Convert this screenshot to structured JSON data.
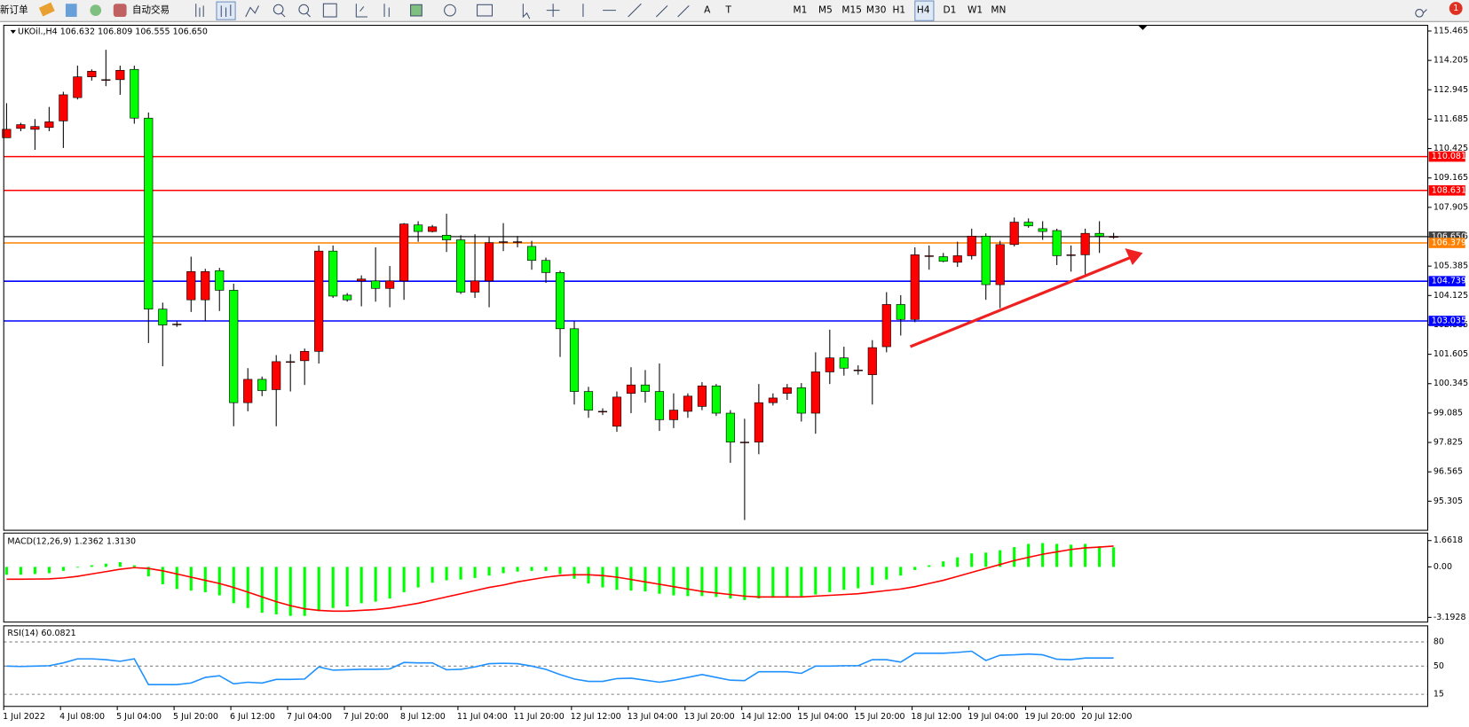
{
  "toolbar": {
    "new_order": "新订单",
    "auto_trading": "自动交易",
    "timeframes": [
      "M1",
      "M5",
      "M15",
      "M30",
      "H1",
      "H4",
      "D1",
      "W1",
      "MN"
    ],
    "active_timeframe": "H4",
    "notifications": 1
  },
  "chart_data": [
    {
      "type": "candlestick",
      "title": "UKOil.,H4 106.632 106.809 106.555 106.650",
      "categories": [
        "1 Jul 2022",
        null,
        null,
        null,
        "4 Jul 08:00",
        null,
        null,
        null,
        "5 Jul 04:00",
        null,
        null,
        null,
        "5 Jul 20:00",
        null,
        null,
        null,
        "6 Jul 12:00",
        null,
        null,
        null,
        "7 Jul 04:00",
        null,
        null,
        null,
        "7 Jul 20:00",
        null,
        null,
        null,
        "8 Jul 12:00",
        null,
        null,
        null,
        "11 Jul 04:00",
        null,
        null,
        null,
        "11 Jul 20:00",
        null,
        null,
        null,
        "12 Jul 12:00",
        null,
        null,
        null,
        "13 Jul 04:00",
        null,
        null,
        null,
        "13 Jul 20:00",
        null,
        null,
        null,
        "14 Jul 12:00",
        null,
        null,
        null,
        "15 Jul 04:00",
        null,
        null,
        null,
        "15 Jul 20:00",
        null,
        null,
        null,
        "18 Jul 12:00",
        null,
        null,
        null,
        "19 Jul 04:00",
        null,
        null,
        null,
        "19 Jul 20:00",
        null,
        null,
        null,
        "20 Jul 12:00",
        null,
        null
      ],
      "ohlc": [
        [
          110.89,
          112.37,
          110.89,
          111.25
        ],
        [
          111.29,
          111.53,
          111.17,
          111.45
        ],
        [
          111.25,
          111.69,
          110.37,
          111.37
        ],
        [
          111.33,
          112.21,
          111.17,
          111.57
        ],
        [
          111.61,
          112.86,
          110.45,
          112.73
        ],
        [
          112.61,
          113.98,
          112.53,
          113.5
        ],
        [
          113.5,
          113.82,
          113.34,
          113.74
        ],
        [
          113.38,
          114.66,
          113.1,
          113.38
        ],
        [
          113.38,
          113.98,
          112.73,
          113.78
        ],
        [
          113.82,
          113.98,
          111.49,
          111.73
        ],
        [
          111.73,
          111.97,
          102.09,
          103.54
        ],
        [
          103.54,
          103.82,
          101.09,
          102.86
        ],
        [
          102.9,
          103.02,
          102.78,
          102.9
        ],
        [
          103.94,
          105.79,
          103.42,
          105.15
        ],
        [
          103.94,
          105.27,
          103.02,
          105.15
        ],
        [
          105.19,
          105.31,
          103.46,
          104.35
        ],
        [
          104.35,
          104.63,
          98.52,
          99.53
        ],
        [
          99.53,
          101.01,
          99.16,
          100.53
        ],
        [
          100.53,
          100.65,
          99.81,
          100.05
        ],
        [
          100.09,
          101.57,
          98.52,
          101.29
        ],
        [
          101.29,
          101.61,
          100.01,
          101.29
        ],
        [
          101.33,
          101.85,
          100.29,
          101.73
        ],
        [
          101.73,
          106.27,
          101.21,
          106.03
        ],
        [
          106.03,
          106.27,
          104.02,
          104.1
        ],
        [
          104.14,
          104.23,
          103.86,
          103.94
        ],
        [
          104.75,
          104.99,
          103.66,
          104.83
        ],
        [
          104.75,
          106.19,
          103.86,
          104.43
        ],
        [
          104.43,
          105.39,
          103.62,
          104.75
        ],
        [
          104.75,
          107.23,
          103.94,
          107.19
        ],
        [
          107.15,
          107.31,
          106.43,
          106.87
        ],
        [
          106.87,
          107.15,
          106.83,
          107.07
        ],
        [
          106.71,
          107.63,
          105.99,
          106.51
        ],
        [
          106.51,
          106.71,
          104.19,
          104.27
        ],
        [
          104.27,
          106.75,
          104.02,
          104.75
        ],
        [
          104.75,
          106.63,
          103.62,
          106.39
        ],
        [
          106.43,
          107.23,
          106.03,
          106.43
        ],
        [
          106.43,
          106.67,
          106.19,
          106.43
        ],
        [
          106.23,
          106.47,
          105.23,
          105.63
        ],
        [
          105.63,
          105.75,
          104.67,
          105.11
        ],
        [
          105.11,
          105.19,
          101.49,
          102.7
        ],
        [
          102.7,
          103.02,
          99.45,
          100.01
        ],
        [
          100.01,
          100.21,
          98.88,
          99.21
        ],
        [
          99.16,
          99.29,
          99.0,
          99.16
        ],
        [
          98.52,
          100.01,
          98.28,
          99.77
        ],
        [
          99.93,
          101.05,
          99.08,
          100.29
        ],
        [
          100.29,
          100.93,
          99.53,
          100.01
        ],
        [
          100.01,
          101.21,
          98.32,
          98.8
        ],
        [
          98.8,
          99.93,
          98.44,
          99.21
        ],
        [
          99.16,
          99.93,
          98.88,
          99.81
        ],
        [
          99.37,
          100.41,
          99.21,
          100.25
        ],
        [
          100.25,
          100.33,
          98.96,
          99.08
        ],
        [
          99.08,
          99.21,
          96.95,
          97.84
        ],
        [
          97.84,
          98.84,
          94.5,
          97.84
        ],
        [
          97.84,
          100.33,
          97.32,
          99.53
        ],
        [
          99.53,
          99.93,
          99.41,
          99.73
        ],
        [
          99.93,
          100.33,
          99.65,
          100.17
        ],
        [
          100.17,
          100.37,
          98.72,
          99.08
        ],
        [
          99.08,
          101.69,
          98.2,
          100.85
        ],
        [
          100.85,
          102.66,
          100.33,
          101.45
        ],
        [
          101.45,
          101.93,
          100.69,
          101.01
        ],
        [
          100.93,
          101.13,
          100.73,
          100.93
        ],
        [
          100.73,
          102.21,
          99.45,
          101.89
        ],
        [
          101.93,
          104.27,
          101.69,
          103.74
        ],
        [
          103.74,
          104.14,
          102.41,
          103.1
        ],
        [
          103.1,
          106.19,
          102.98,
          105.87
        ],
        [
          105.83,
          106.27,
          105.23,
          105.83
        ],
        [
          105.79,
          105.95,
          105.55,
          105.59
        ],
        [
          105.55,
          106.43,
          105.35,
          105.83
        ],
        [
          105.83,
          106.99,
          105.67,
          106.67
        ],
        [
          106.67,
          106.79,
          103.94,
          104.59
        ],
        [
          104.59,
          106.47,
          103.58,
          106.31
        ],
        [
          106.31,
          107.47,
          106.23,
          107.27
        ],
        [
          107.27,
          107.43,
          107.03,
          107.11
        ],
        [
          106.99,
          107.31,
          106.51,
          106.87
        ],
        [
          106.91,
          106.99,
          105.43,
          105.83
        ],
        [
          105.87,
          106.27,
          105.15,
          105.87
        ],
        [
          105.87,
          106.99,
          105.03,
          106.79
        ],
        [
          106.79,
          107.31,
          105.95,
          106.67
        ],
        [
          106.632,
          106.809,
          106.555,
          106.65
        ]
      ],
      "up_color": "#ff0000",
      "down_color": "#00ff00",
      "ylim": [
        94.06,
        115.71
      ],
      "yticks": [
        115.465,
        114.205,
        112.945,
        111.685,
        110.425,
        109.165,
        107.905,
        106.645,
        105.385,
        104.125,
        102.865,
        101.605,
        100.345,
        99.085,
        97.825,
        96.565,
        95.305
      ],
      "levels": [
        {
          "value": 110.081,
          "color": "#ff0000"
        },
        {
          "value": 108.631,
          "color": "#ff0000"
        },
        {
          "value": 106.65,
          "label": "106.650",
          "color": "#404040"
        },
        {
          "value": 106.379,
          "color": "#ff8000"
        },
        {
          "value": 104.739,
          "color": "#0000ff"
        },
        {
          "value": 103.035,
          "color": "#0000ff"
        }
      ]
    },
    {
      "type": "macd",
      "title": "MACD(12,26,9) 1.2362 1.3130",
      "series": [
        {
          "color": "#00ff00",
          "values": [
            -0.5,
            -0.5,
            -0.45,
            -0.4,
            -0.25,
            -0.05,
            0.1,
            0.2,
            0.3,
            0.1,
            -0.6,
            -1.1,
            -1.4,
            -1.5,
            -1.6,
            -1.8,
            -2.3,
            -2.6,
            -2.9,
            -3.0,
            -3.1,
            -3.1,
            -2.8,
            -2.6,
            -2.5,
            -2.3,
            -2.2,
            -2.0,
            -1.6,
            -1.3,
            -1.0,
            -0.85,
            -0.8,
            -0.7,
            -0.55,
            -0.4,
            -0.3,
            -0.25,
            -0.25,
            -0.45,
            -0.75,
            -1.05,
            -1.3,
            -1.45,
            -1.5,
            -1.55,
            -1.7,
            -1.8,
            -1.85,
            -1.85,
            -1.9,
            -2.0,
            -2.1,
            -2.0,
            -1.95,
            -1.9,
            -1.9,
            -1.75,
            -1.6,
            -1.45,
            -1.35,
            -1.15,
            -0.8,
            -0.55,
            -0.2,
            0.1,
            0.35,
            0.6,
            0.85,
            0.9,
            1.05,
            1.25,
            1.45,
            1.5,
            1.45,
            1.4,
            1.45,
            1.3,
            1.2362
          ]
        },
        {
          "color": "#ff0000",
          "values": [
            -0.78,
            -0.78,
            -0.77,
            -0.76,
            -0.7,
            -0.6,
            -0.45,
            -0.3,
            -0.15,
            -0.05,
            -0.1,
            -0.25,
            -0.45,
            -0.65,
            -0.85,
            -1.05,
            -1.3,
            -1.6,
            -1.9,
            -2.2,
            -2.45,
            -2.65,
            -2.75,
            -2.8,
            -2.8,
            -2.75,
            -2.7,
            -2.6,
            -2.45,
            -2.3,
            -2.1,
            -1.9,
            -1.7,
            -1.5,
            -1.3,
            -1.15,
            -0.95,
            -0.8,
            -0.65,
            -0.55,
            -0.5,
            -0.5,
            -0.55,
            -0.65,
            -0.8,
            -0.95,
            -1.1,
            -1.25,
            -1.4,
            -1.55,
            -1.65,
            -1.75,
            -1.85,
            -1.9,
            -1.9,
            -1.9,
            -1.9,
            -1.85,
            -1.8,
            -1.75,
            -1.7,
            -1.6,
            -1.5,
            -1.4,
            -1.25,
            -1.05,
            -0.85,
            -0.6,
            -0.35,
            -0.1,
            0.15,
            0.4,
            0.6,
            0.8,
            0.95,
            1.1,
            1.2,
            1.25,
            1.313
          ]
        }
      ],
      "ylim": [
        -3.489,
        2.135
      ],
      "yticks": [
        1.6618,
        {
          "value": 0,
          "label": "0.00"
        },
        -3.1928
      ]
    },
    {
      "type": "line",
      "title": "RSI(14) 60.0821",
      "color": "#1e90ff",
      "values": [
        50,
        49.5,
        50,
        50.5,
        54,
        59,
        59,
        58,
        56,
        59,
        27,
        27,
        27,
        29,
        36,
        38,
        28,
        30,
        29,
        33.5,
        33.5,
        34,
        49,
        45,
        45.5,
        46,
        46,
        46.5,
        54.5,
        54,
        54,
        45.5,
        46,
        49,
        53,
        53.5,
        53,
        50,
        46,
        39.5,
        34,
        31,
        31,
        34.5,
        35,
        32.5,
        30,
        32.5,
        36,
        39.5,
        36,
        32.5,
        32,
        43,
        43,
        43,
        41,
        50,
        50,
        50.5,
        50.5,
        58,
        58,
        55,
        66,
        66,
        66,
        67,
        68.5,
        57,
        63.5,
        64,
        65,
        64,
        58.5,
        58,
        60,
        60,
        60.0821
      ],
      "ylim": [
        0,
        100
      ],
      "yticks": [
        80,
        50,
        15
      ]
    }
  ]
}
